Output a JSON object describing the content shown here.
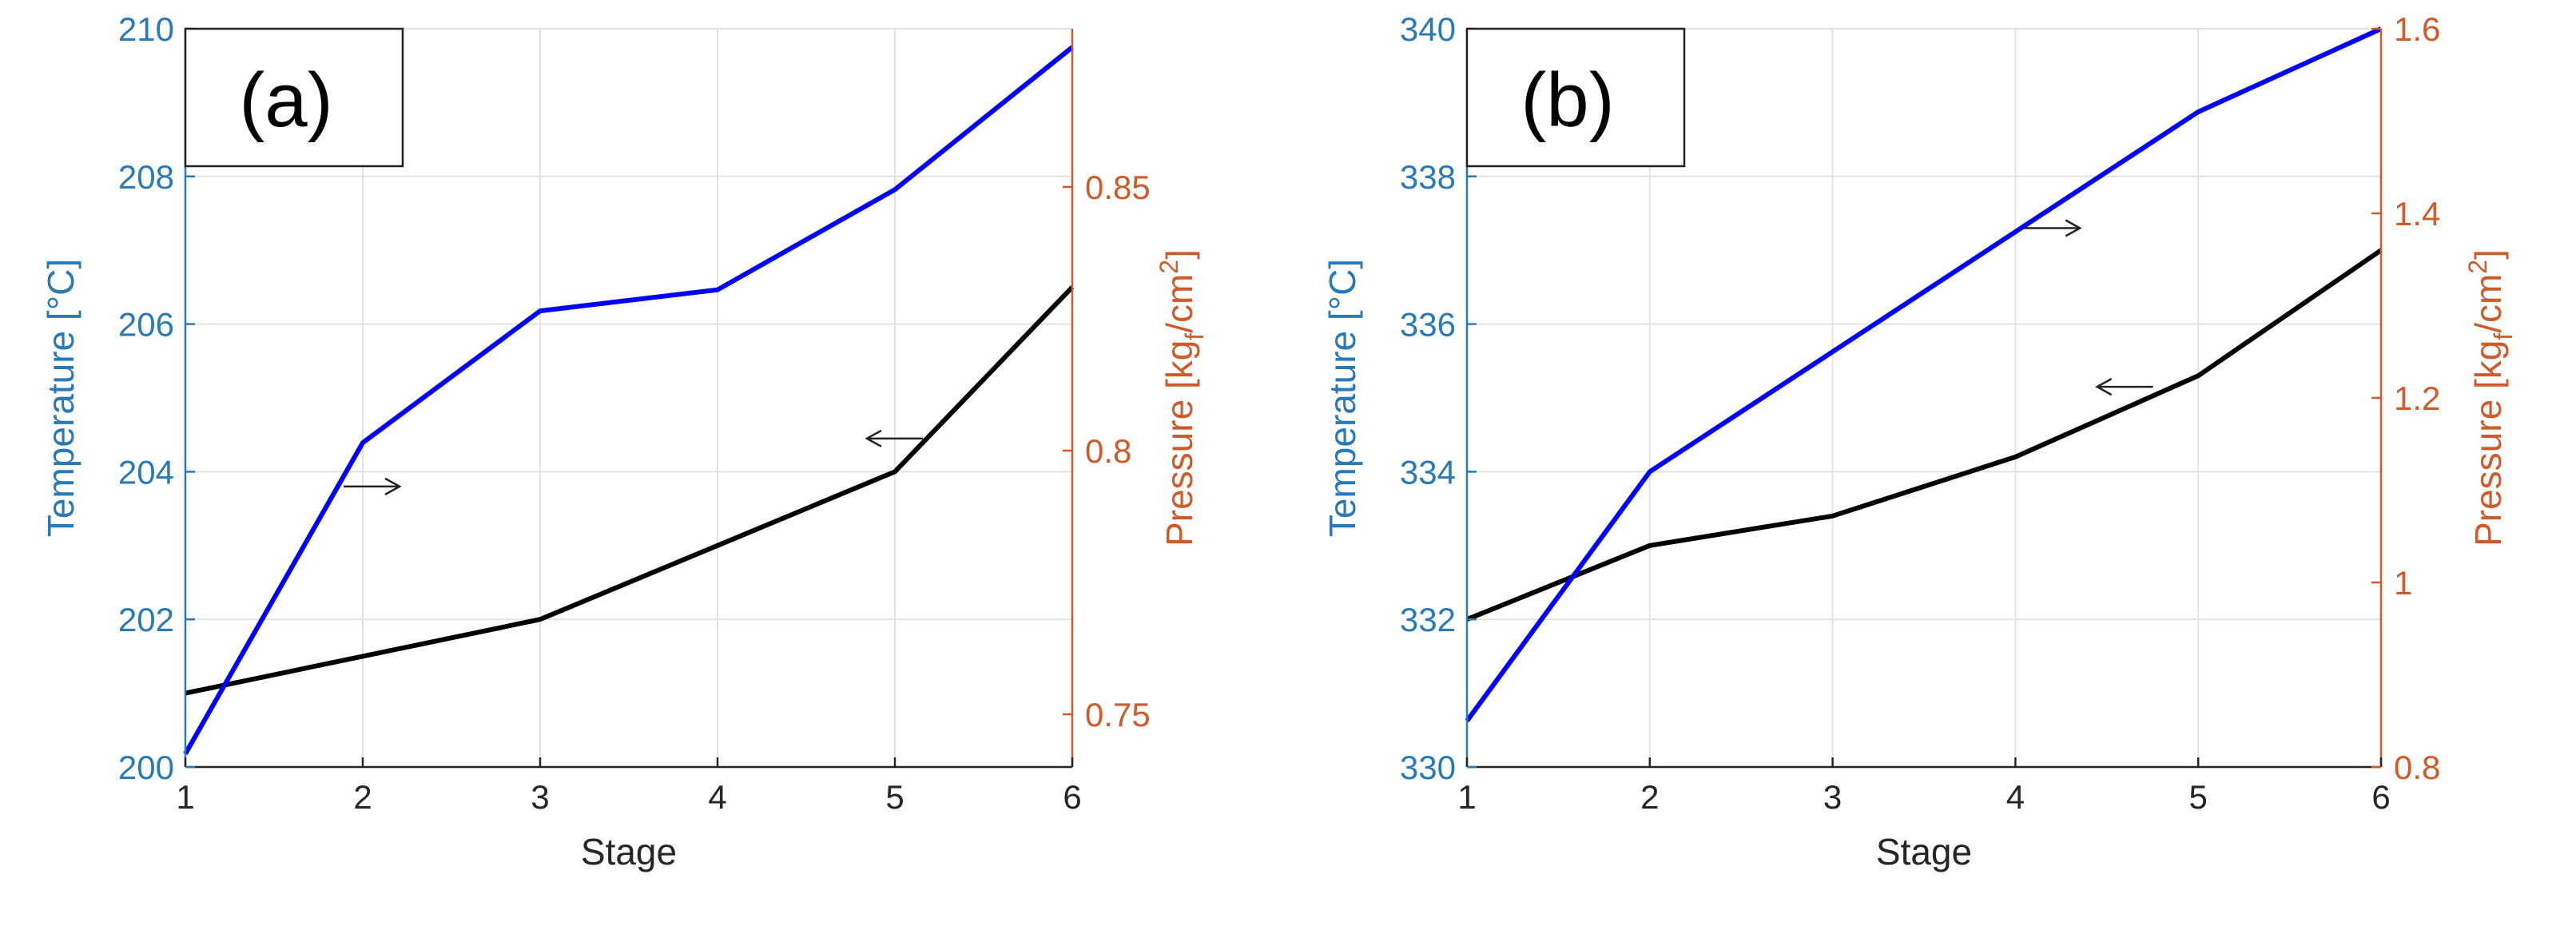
{
  "chart_data": [
    {
      "type": "line",
      "panel_label": "(a)",
      "xlabel": "Stage",
      "ylabel_left": "Temperature [°C]",
      "ylabel_right": {
        "main": "Pressure [kg",
        "sub": "f",
        "mid": "/cm",
        "sup": "2",
        "end": "]"
      },
      "x": [
        1,
        2,
        3,
        4,
        5,
        6
      ],
      "xticks": [
        "1",
        "2",
        "3",
        "4",
        "5",
        "6"
      ],
      "ylim_left": [
        200,
        210
      ],
      "yticks_left": [
        "200",
        "202",
        "204",
        "206",
        "208",
        "210"
      ],
      "ylim_right": [
        0.74,
        0.88
      ],
      "yticks_right": [
        "0.75",
        "0.8",
        "0.85"
      ],
      "yticks_right_values": [
        0.75,
        0.8,
        0.85
      ],
      "grid": true,
      "series": [
        {
          "axis": "left",
          "color": "#000000",
          "values": [
            201.0,
            201.5,
            202.0,
            203.0,
            204.0,
            206.5
          ]
        },
        {
          "axis": "right",
          "color": "#0000ff",
          "values": [
            0.7425,
            0.8015,
            0.8265,
            0.8305,
            0.8495,
            0.8765
          ]
        }
      ],
      "annotations": [
        {
          "glyph": "→",
          "points_to": "right axis",
          "x": 2.05,
          "y": 203.8
        },
        {
          "glyph": "←",
          "points_to": "left axis",
          "x": 5.0,
          "y": 204.45
        }
      ]
    },
    {
      "type": "line",
      "panel_label": "(b)",
      "xlabel": "Stage",
      "ylabel_left": "Temperature [°C]",
      "ylabel_right": {
        "main": "Pressure [kg",
        "sub": "f",
        "mid": "/cm",
        "sup": "2",
        "end": "]"
      },
      "x": [
        1,
        2,
        3,
        4,
        5,
        6
      ],
      "xticks": [
        "1",
        "2",
        "3",
        "4",
        "5",
        "6"
      ],
      "ylim_left": [
        330,
        340
      ],
      "yticks_left": [
        "330",
        "332",
        "334",
        "336",
        "338",
        "340"
      ],
      "ylim_right": [
        0.8,
        1.6
      ],
      "yticks_right": [
        "0.8",
        "1",
        "1.2",
        "1.4",
        "1.6"
      ],
      "yticks_right_values": [
        0.8,
        1.0,
        1.2,
        1.4,
        1.6
      ],
      "grid": true,
      "series": [
        {
          "axis": "left",
          "color": "#000000",
          "values": [
            332.0,
            333.0,
            333.4,
            334.2,
            335.3,
            337.0
          ]
        },
        {
          "axis": "right",
          "color": "#0000ff",
          "values": [
            0.85,
            1.12,
            1.25,
            1.38,
            1.51,
            1.6
          ]
        }
      ],
      "annotations": [
        {
          "glyph": "→",
          "points_to": "right axis",
          "x": 4.2,
          "y": 337.3
        },
        {
          "glyph": "←",
          "points_to": "left axis",
          "x": 4.6,
          "y": 335.15
        }
      ]
    }
  ],
  "colors": {
    "left_axis": "#2a7ab8",
    "right_axis": "#cf5b2b",
    "grid": "#e2e2e2",
    "axis": "#262626"
  }
}
